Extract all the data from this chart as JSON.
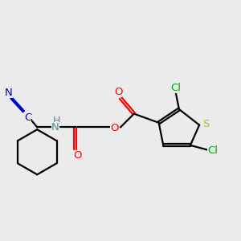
{
  "bg_color": "#ebebeb",
  "bond_color": "#000000",
  "atom_colors": {
    "C_blue": "#0000cc",
    "N": "#4a9090",
    "O": "#ff0000",
    "S": "#bbbb00",
    "Cl": "#00aa00"
  },
  "font_size": 9.5,
  "line_width": 1.6
}
